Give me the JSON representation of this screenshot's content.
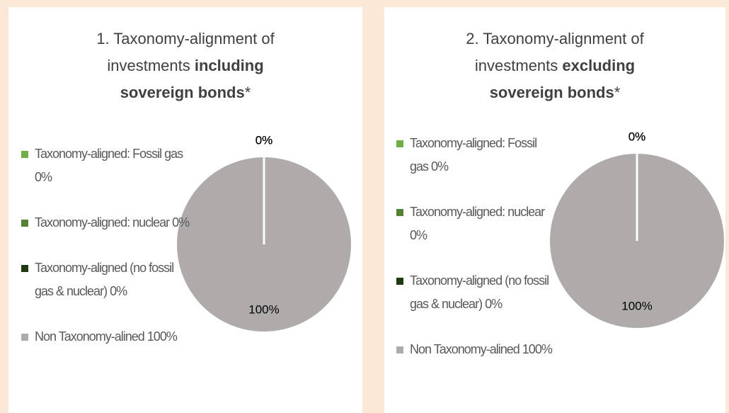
{
  "chart_data": [
    {
      "type": "pie",
      "title": "1. Taxonomy-alignment of investments",
      "title_bold": "including sovereign bonds",
      "title_suffix": "*",
      "categories": [
        "Taxonomy-aligned: Fossil gas",
        "Taxonomy-aligned: nuclear",
        "Taxonomy-aligned (no fossil gas & nuclear)",
        "Non Taxonomy-alined"
      ],
      "values": [
        0,
        0,
        0,
        100
      ],
      "value_labels": [
        "0%",
        "0%",
        "0%",
        "100%"
      ],
      "colors": [
        "#70ad47",
        "#548235",
        "#1f3a13",
        "#afabab"
      ]
    },
    {
      "type": "pie",
      "title": "2. Taxonomy-alignment of investments",
      "title_bold": "excluding sovereign bonds",
      "title_suffix": "*",
      "categories": [
        "Taxonomy-aligned: Fossil gas",
        "Taxonomy-aligned: nuclear",
        "Taxonomy-aligned (no fossil gas & nuclear)",
        "Non Taxonomy-alined"
      ],
      "values": [
        0,
        0,
        0,
        100
      ],
      "value_labels": [
        "0%",
        "0%",
        "0%",
        "100%"
      ],
      "colors": [
        "#70ad47",
        "#548235",
        "#1f3a13",
        "#afabab"
      ]
    }
  ]
}
